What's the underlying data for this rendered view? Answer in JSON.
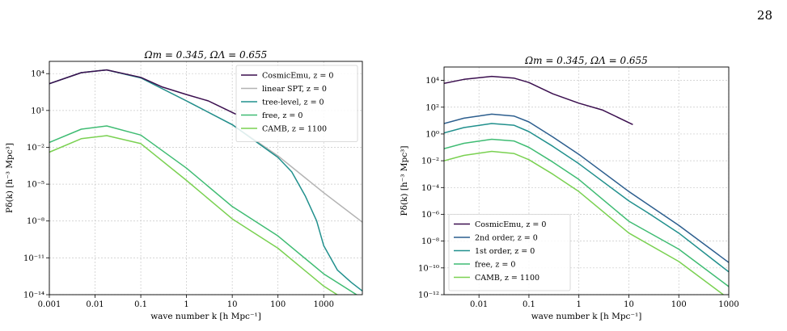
{
  "page_number": "28",
  "colors": {
    "cosmicemu": "#3b0f4f",
    "linear_spt": "#b3b3b3",
    "tree_level": "#21908d",
    "free": "#3fbc73",
    "camb": "#7ad151",
    "second_order": "#2c5e8e",
    "first_order": "#21908d"
  },
  "chart_data": [
    {
      "type": "line",
      "title": "Ωm = 0.345, ΩΛ = 0.655",
      "xlabel": "wave number k [h Mpc⁻¹]",
      "ylabel": "Pδ(k) [h⁻³ Mpc³]",
      "xscale": "log",
      "yscale": "log",
      "xlim": [
        0.001,
        7000
      ],
      "ylim": [
        1e-14,
        100000.0
      ],
      "xticks": [
        {
          "v": 0.001,
          "label": "0.001"
        },
        {
          "v": 0.01,
          "label": "0.01"
        },
        {
          "v": 0.1,
          "label": "0.1"
        },
        {
          "v": 1,
          "label": "1"
        },
        {
          "v": 10,
          "label": "10"
        },
        {
          "v": 100,
          "label": "100"
        },
        {
          "v": 1000,
          "label": "1000"
        }
      ],
      "yticks": [
        {
          "v": 10000.0,
          "label": "10⁴"
        },
        {
          "v": 10,
          "label": "10¹"
        },
        {
          "v": 0.01,
          "label": "10⁻²"
        },
        {
          "v": 1e-05,
          "label": "10⁻⁵"
        },
        {
          "v": 1e-08,
          "label": "10⁻⁸"
        },
        {
          "v": 1e-11,
          "label": "10⁻¹¹"
        },
        {
          "v": 1e-14,
          "label": "10⁻¹⁴"
        }
      ],
      "grid": true,
      "legend_position": "top-right",
      "series": [
        {
          "key": "linear_spt",
          "name": "linear SPT, z = 0",
          "color": "#b3b3b3",
          "x": [
            0.001,
            0.005,
            0.018,
            0.1,
            1,
            10,
            100,
            1000,
            7000
          ],
          "y": [
            1500.0,
            12000.0,
            20000.0,
            4500.0,
            60,
            0.7,
            0.002,
            2e-06,
            8e-09
          ]
        },
        {
          "key": "tree_level",
          "name": "tree-level, z = 0",
          "color": "#21908d",
          "x": [
            0.001,
            0.005,
            0.018,
            0.1,
            1,
            10,
            100,
            200,
            400,
            700,
            1000,
            2000,
            4000,
            7000
          ],
          "y": [
            1500.0,
            12000.0,
            20000.0,
            4500.0,
            60,
            0.7,
            0.0015,
            0.0001,
            1e-06,
            1e-08,
            1e-10,
            1e-12,
            1e-13,
            2e-14
          ]
        },
        {
          "key": "cosmicemu",
          "name": "CosmicEmu, z = 0",
          "color": "#3b0f4f",
          "x": [
            0.001,
            0.005,
            0.018,
            0.1,
            0.3,
            1,
            3,
            12
          ],
          "y": [
            1500.0,
            12000.0,
            20000.0,
            5000.0,
            800,
            200,
            60,
            5
          ]
        },
        {
          "key": "free",
          "name": "free, z = 0",
          "color": "#3fbc73",
          "x": [
            0.001,
            0.005,
            0.018,
            0.1,
            1,
            10,
            100,
            1000,
            7000
          ],
          "y": [
            0.025,
            0.3,
            0.55,
            0.1,
            0.0002,
            1.5e-07,
            6e-10,
            5e-13,
            5e-15
          ]
        },
        {
          "key": "camb",
          "name": "CAMB, z = 1100",
          "color": "#7ad151",
          "x": [
            0.001,
            0.005,
            0.018,
            0.1,
            1,
            10,
            100,
            1000,
            7000
          ],
          "y": [
            0.004,
            0.05,
            0.09,
            0.02,
            2e-05,
            1.5e-08,
            6e-11,
            5e-14,
            5e-16
          ]
        }
      ],
      "legend": [
        {
          "key": "cosmicemu",
          "label": "CosmicEmu, z = 0"
        },
        {
          "key": "linear_spt",
          "label": "linear SPT, z = 0"
        },
        {
          "key": "tree_level",
          "label": "tree-level, z = 0"
        },
        {
          "key": "free",
          "label": "free, z = 0"
        },
        {
          "key": "camb",
          "label": "CAMB, z = 1100"
        }
      ]
    },
    {
      "type": "line",
      "title": "Ωm = 0.345, ΩΛ = 0.655",
      "xlabel": "wave number k [h Mpc⁻¹]",
      "ylabel": "Pδ(k) [h⁻³ Mpc³]",
      "xscale": "log",
      "yscale": "log",
      "xlim": [
        0.002,
        1000
      ],
      "ylim": [
        1e-12,
        100000.0
      ],
      "xticks": [
        {
          "v": 0.01,
          "label": "0.01"
        },
        {
          "v": 0.1,
          "label": "0.1"
        },
        {
          "v": 1,
          "label": "1"
        },
        {
          "v": 10,
          "label": "10"
        },
        {
          "v": 100,
          "label": "100"
        },
        {
          "v": 1000,
          "label": "1000"
        }
      ],
      "yticks": [
        {
          "v": 10000.0,
          "label": "10⁴"
        },
        {
          "v": 100.0,
          "label": "10²"
        },
        {
          "v": 1,
          "label": "10⁰"
        },
        {
          "v": 0.01,
          "label": "10⁻²"
        },
        {
          "v": 0.0001,
          "label": "10⁻⁴"
        },
        {
          "v": 1e-06,
          "label": "10⁻⁶"
        },
        {
          "v": 1e-08,
          "label": "10⁻⁸"
        },
        {
          "v": 1e-10,
          "label": "10⁻¹⁰"
        },
        {
          "v": 1e-12,
          "label": "10⁻¹²"
        }
      ],
      "grid": true,
      "legend_position": "bottom-left",
      "series": [
        {
          "key": "cosmicemu",
          "name": "CosmicEmu, z = 0",
          "color": "#3b0f4f",
          "x": [
            0.002,
            0.005,
            0.018,
            0.05,
            0.1,
            0.3,
            1,
            3,
            12
          ],
          "y": [
            6000.0,
            12000.0,
            20000.0,
            15000.0,
            7000.0,
            1000.0,
            200,
            60,
            5
          ]
        },
        {
          "key": "second_order",
          "name": "2nd order, z = 0",
          "color": "#2c5e8e",
          "x": [
            0.002,
            0.005,
            0.018,
            0.05,
            0.1,
            0.3,
            1,
            10,
            100,
            1000
          ],
          "y": [
            6,
            15,
            30,
            22,
            8,
            0.6,
            0.03,
            5e-05,
            1.5e-07,
            2.5e-10
          ]
        },
        {
          "key": "first_order",
          "name": "1st order, z = 0",
          "color": "#21908d",
          "x": [
            0.002,
            0.005,
            0.018,
            0.05,
            0.1,
            0.3,
            1,
            10,
            20,
            25,
            100,
            1000
          ],
          "y": [
            1.2,
            3,
            6,
            4.5,
            1.5,
            0.12,
            0.006,
            1e-05,
            2e-06,
            1.2e-06,
            4e-08,
            5e-11
          ]
        },
        {
          "key": "free",
          "name": "free, z = 0",
          "color": "#3fbc73",
          "x": [
            0.002,
            0.005,
            0.018,
            0.05,
            0.1,
            0.3,
            1,
            10,
            100,
            1000
          ],
          "y": [
            0.08,
            0.2,
            0.4,
            0.3,
            0.1,
            0.008,
            0.0004,
            3e-07,
            2.5e-09,
            4e-12
          ]
        },
        {
          "key": "camb",
          "name": "CAMB, z = 1100",
          "color": "#7ad151",
          "x": [
            0.002,
            0.005,
            0.018,
            0.05,
            0.1,
            0.3,
            1,
            10,
            100,
            1000
          ],
          "y": [
            0.01,
            0.025,
            0.05,
            0.035,
            0.012,
            0.001,
            5e-05,
            4e-08,
            3e-10,
            5e-13
          ]
        }
      ],
      "legend": [
        {
          "key": "cosmicemu",
          "label": "CosmicEmu, z = 0"
        },
        {
          "key": "second_order",
          "label": "2nd order, z = 0"
        },
        {
          "key": "first_order",
          "label": "1st order, z = 0"
        },
        {
          "key": "free",
          "label": "free, z = 0"
        },
        {
          "key": "camb",
          "label": "CAMB, z = 1100"
        }
      ]
    }
  ]
}
